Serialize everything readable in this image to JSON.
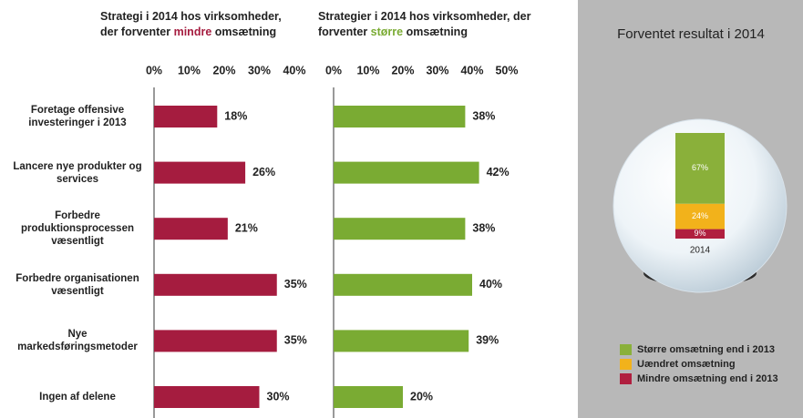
{
  "chart_data": [
    {
      "type": "hbar",
      "title": {
        "line1": "Strategi i 2014 hos virksomheder,",
        "line2_start": "der forventer",
        "highlight": "mindre",
        "line2_end": "omsætning"
      },
      "highlight_color": "#a51c3f",
      "categories": [
        "Foretage offensive investeringer i 2013",
        "Lancere nye produkter og services",
        "Forbedre produktionsprocessen væsentligt",
        "Forbedre organisationen væsentligt",
        "Nye markedsføringsmetoder",
        "Ingen af delene"
      ],
      "values": [
        18,
        26,
        21,
        35,
        35,
        30
      ],
      "value_labels": [
        "18%",
        "26%",
        "21%",
        "35%",
        "35%",
        "30%"
      ],
      "color": "#a51c3f",
      "xlim": [
        0,
        40
      ],
      "xticks": [
        {
          "value": 0,
          "label": "0%"
        },
        {
          "value": 10,
          "label": "10%"
        },
        {
          "value": 20,
          "label": "20%"
        },
        {
          "value": 30,
          "label": "30%"
        },
        {
          "value": 40,
          "label": "40%"
        }
      ]
    },
    {
      "type": "hbar",
      "title": {
        "line1": "Strategier i 2014 hos virksomheder, der",
        "line2_start": "forventer",
        "highlight": "større",
        "line2_end": "omsætning"
      },
      "highlight_color": "#7aab33",
      "values": [
        38,
        42,
        38,
        40,
        39,
        20
      ],
      "value_labels": [
        "38%",
        "42%",
        "38%",
        "40%",
        "39%",
        "20%"
      ],
      "color": "#7aab33",
      "xlim": [
        0,
        50
      ],
      "xticks": [
        {
          "value": 0,
          "label": "0%"
        },
        {
          "value": 10,
          "label": "10%"
        },
        {
          "value": 20,
          "label": "20%"
        },
        {
          "value": 30,
          "label": "30%"
        },
        {
          "value": 40,
          "label": "40%"
        },
        {
          "value": 50,
          "label": "50%"
        }
      ]
    },
    {
      "type": "stacked",
      "title": "Forventet resultat i 2014",
      "categories": [
        "2014"
      ],
      "series": [
        {
          "name": "Større omsætning end i 2013",
          "color": "#8ab03a",
          "values": [
            67
          ],
          "value_labels": [
            "67%"
          ]
        },
        {
          "name": "Uændret omsætning",
          "color": "#f2b21b",
          "values": [
            24
          ],
          "value_labels": [
            "24%"
          ]
        },
        {
          "name": "Mindre omsætning end i 2013",
          "color": "#b01f3f",
          "values": [
            9
          ],
          "value_labels": [
            "9%"
          ]
        }
      ]
    }
  ]
}
